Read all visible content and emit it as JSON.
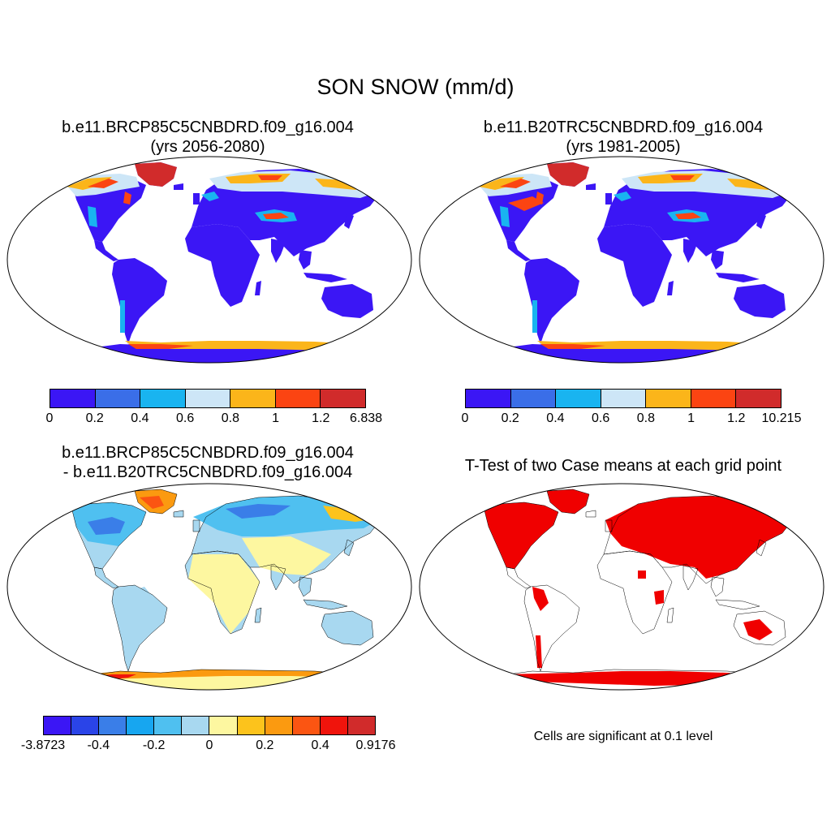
{
  "title": "SON SNOW (mm/d)",
  "panels": [
    {
      "title_lines": [
        "b.e11.BRCP85C5CNBDRD.f09_g16.004",
        "(yrs 2056-2080)"
      ],
      "colorbar": {
        "colors": [
          "#3b16f5",
          "#3a6ee8",
          "#19b4f0",
          "#cde6f7",
          "#fbb51a",
          "#fb4412",
          "#d12b2b"
        ],
        "labels": [
          "0",
          "0.2",
          "0.4",
          "0.6",
          "0.8",
          "1",
          "1.2",
          "6.838"
        ]
      }
    },
    {
      "title_lines": [
        "b.e11.B20TRC5CNBDRD.f09_g16.004",
        "(yrs 1981-2005)"
      ],
      "colorbar": {
        "colors": [
          "#3b16f5",
          "#3a6ee8",
          "#19b4f0",
          "#cde6f7",
          "#fbb51a",
          "#fb4412",
          "#d12b2b"
        ],
        "labels": [
          "0",
          "0.2",
          "0.4",
          "0.6",
          "0.8",
          "1",
          "1.2",
          "10.215"
        ]
      }
    },
    {
      "title_lines": [
        "b.e11.BRCP85C5CNBDRD.f09_g16.004",
        "- b.e11.B20TRC5CNBDRD.f09_g16.004"
      ],
      "colorbar": {
        "colors": [
          "#3b16f5",
          "#2a44e8",
          "#3a7ee8",
          "#17a6f0",
          "#4fc0f0",
          "#a8d8f0",
          "#fdf7a0",
          "#fcc31c",
          "#fb9a10",
          "#fb5512",
          "#f0140c",
          "#d12b2b"
        ],
        "labels": [
          "-3.8723",
          "-0.4",
          "-0.2",
          "0",
          "0.2",
          "0.4",
          "0.9176"
        ]
      }
    },
    {
      "title_lines": [
        "T-Test of two Case means at each grid point"
      ],
      "note": "Cells are significant at 0.1 level"
    }
  ]
}
